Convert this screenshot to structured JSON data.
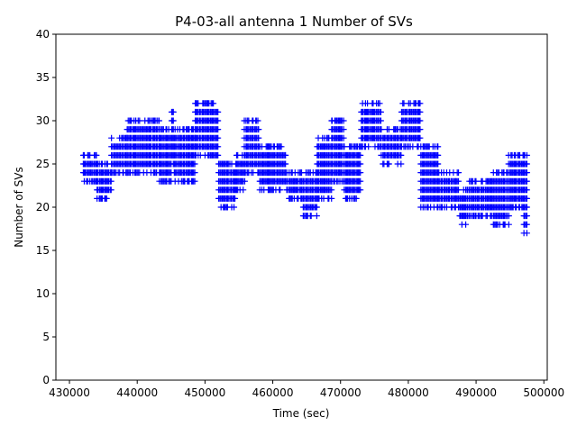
{
  "chart_data": {
    "type": "scatter",
    "title": "P4-03-all antenna 1 Number of SVs",
    "xlabel": "Time (sec)",
    "ylabel": "Number of SVs",
    "xlim": [
      428000,
      500500
    ],
    "ylim": [
      0,
      40
    ],
    "xticks": [
      430000,
      440000,
      450000,
      460000,
      470000,
      480000,
      490000,
      500000
    ],
    "xtick_labels": [
      "430000",
      "440000",
      "450000",
      "460000",
      "470000",
      "480000",
      "490000",
      "500000"
    ],
    "yticks": [
      0,
      5,
      10,
      15,
      20,
      25,
      30,
      35,
      40
    ],
    "ytick_labels": [
      "0",
      "5",
      "10",
      "15",
      "20",
      "25",
      "30",
      "35",
      "40"
    ],
    "grid": false,
    "marker": "+",
    "series": [
      {
        "color": "#0000ff",
        "segments": [
          {
            "x_range": [
              432000,
              434000
            ],
            "y_values": [
              23,
              24,
              25,
              26
            ]
          },
          {
            "x_range": [
              434000,
              436200
            ],
            "y_values": [
              21,
              22,
              23,
              24,
              25
            ]
          },
          {
            "x_range": [
              436200,
              438500
            ],
            "y_values": [
              24,
              25,
              26,
              27,
              28
            ]
          },
          {
            "x_range": [
              438500,
              443200
            ],
            "y_values": [
              24,
              25,
              26,
              27,
              28,
              29,
              30
            ]
          },
          {
            "x_range": [
              443200,
              445000
            ],
            "y_values": [
              23,
              24,
              25,
              26,
              27,
              28,
              29
            ]
          },
          {
            "x_range": [
              445000,
              445400
            ],
            "y_values": [
              25,
              26,
              27,
              28,
              29,
              30,
              31
            ]
          },
          {
            "x_range": [
              445400,
              448500
            ],
            "y_values": [
              23,
              24,
              25,
              26,
              27,
              28,
              29
            ]
          },
          {
            "x_range": [
              448500,
              452000
            ],
            "y_values": [
              26,
              27,
              28,
              29,
              30,
              31,
              32
            ]
          },
          {
            "x_range": [
              452000,
              454500
            ],
            "y_values": [
              20,
              21,
              22,
              23,
              24,
              25
            ]
          },
          {
            "x_range": [
              454500,
              455800
            ],
            "y_values": [
              22,
              23,
              24,
              25,
              26
            ]
          },
          {
            "x_range": [
              455800,
              458000
            ],
            "y_values": [
              24,
              25,
              26,
              27,
              28,
              29,
              30
            ]
          },
          {
            "x_range": [
              458000,
              462000
            ],
            "y_values": [
              22,
              23,
              24,
              25,
              26,
              27
            ]
          },
          {
            "x_range": [
              462000,
              464500
            ],
            "y_values": [
              21,
              22,
              23,
              24
            ]
          },
          {
            "x_range": [
              464500,
              466500
            ],
            "y_values": [
              19,
              20,
              21,
              22,
              23,
              24
            ]
          },
          {
            "x_range": [
              466500,
              468600
            ],
            "y_values": [
              21,
              22,
              23,
              24,
              25,
              26,
              27,
              28
            ]
          },
          {
            "x_range": [
              468600,
              470500
            ],
            "y_values": [
              23,
              24,
              25,
              26,
              27,
              28,
              29,
              30
            ]
          },
          {
            "x_range": [
              470500,
              473000
            ],
            "y_values": [
              21,
              22,
              23,
              24,
              25,
              26,
              27
            ]
          },
          {
            "x_range": [
              473000,
              476000
            ],
            "y_values": [
              27,
              28,
              29,
              30,
              31,
              32
            ]
          },
          {
            "x_range": [
              476000,
              479000
            ],
            "y_values": [
              25,
              26,
              27,
              28,
              29
            ]
          },
          {
            "x_range": [
              479000,
              481800
            ],
            "y_values": [
              27,
              28,
              29,
              30,
              31,
              32
            ]
          },
          {
            "x_range": [
              481800,
              484500
            ],
            "y_values": [
              20,
              21,
              22,
              23,
              24,
              25,
              26,
              27
            ]
          },
          {
            "x_range": [
              484500,
              487500
            ],
            "y_values": [
              20,
              21,
              22,
              23,
              24
            ]
          },
          {
            "x_range": [
              487500,
              489000
            ],
            "y_values": [
              18,
              19,
              20,
              21,
              22
            ]
          },
          {
            "x_range": [
              489000,
              492500
            ],
            "y_values": [
              19,
              20,
              21,
              22,
              23
            ]
          },
          {
            "x_range": [
              492500,
              494800
            ],
            "y_values": [
              18,
              19,
              20,
              21,
              22,
              23,
              24
            ]
          },
          {
            "x_range": [
              494800,
              497000
            ],
            "y_values": [
              20,
              21,
              22,
              23,
              24,
              25,
              26
            ]
          },
          {
            "x_range": [
              497000,
              497600
            ],
            "y_values": [
              17,
              18,
              19,
              20,
              21,
              22,
              23,
              24,
              25,
              26
            ]
          }
        ]
      }
    ]
  }
}
